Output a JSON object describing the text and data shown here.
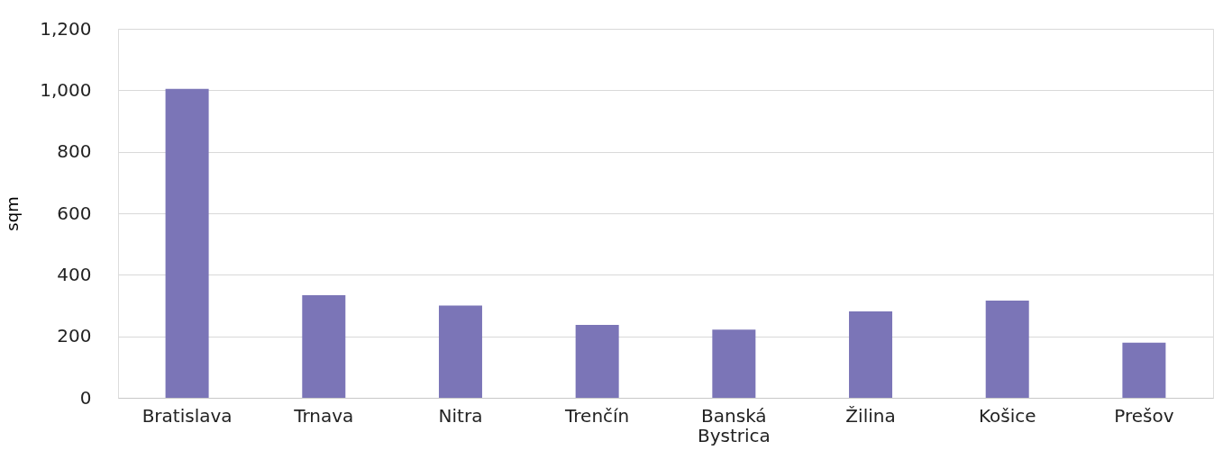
{
  "chart_data": {
    "type": "bar",
    "ylabel": "sqm",
    "categories": [
      "Bratislava",
      "Trnava",
      "Nitra",
      "Trenčín",
      "Banská Bystrica",
      "Žilina",
      "Košice",
      "Prešov"
    ],
    "values": [
      1005,
      334,
      300,
      237,
      222,
      281,
      316,
      179
    ],
    "color": "#7b75b7",
    "ylim": [
      0,
      1200
    ],
    "yticks": [
      0,
      200,
      400,
      600,
      800,
      {
        "value": 1000,
        "label": "1,000"
      },
      {
        "value": 1200,
        "label": "1,200"
      }
    ],
    "grid": "y"
  }
}
